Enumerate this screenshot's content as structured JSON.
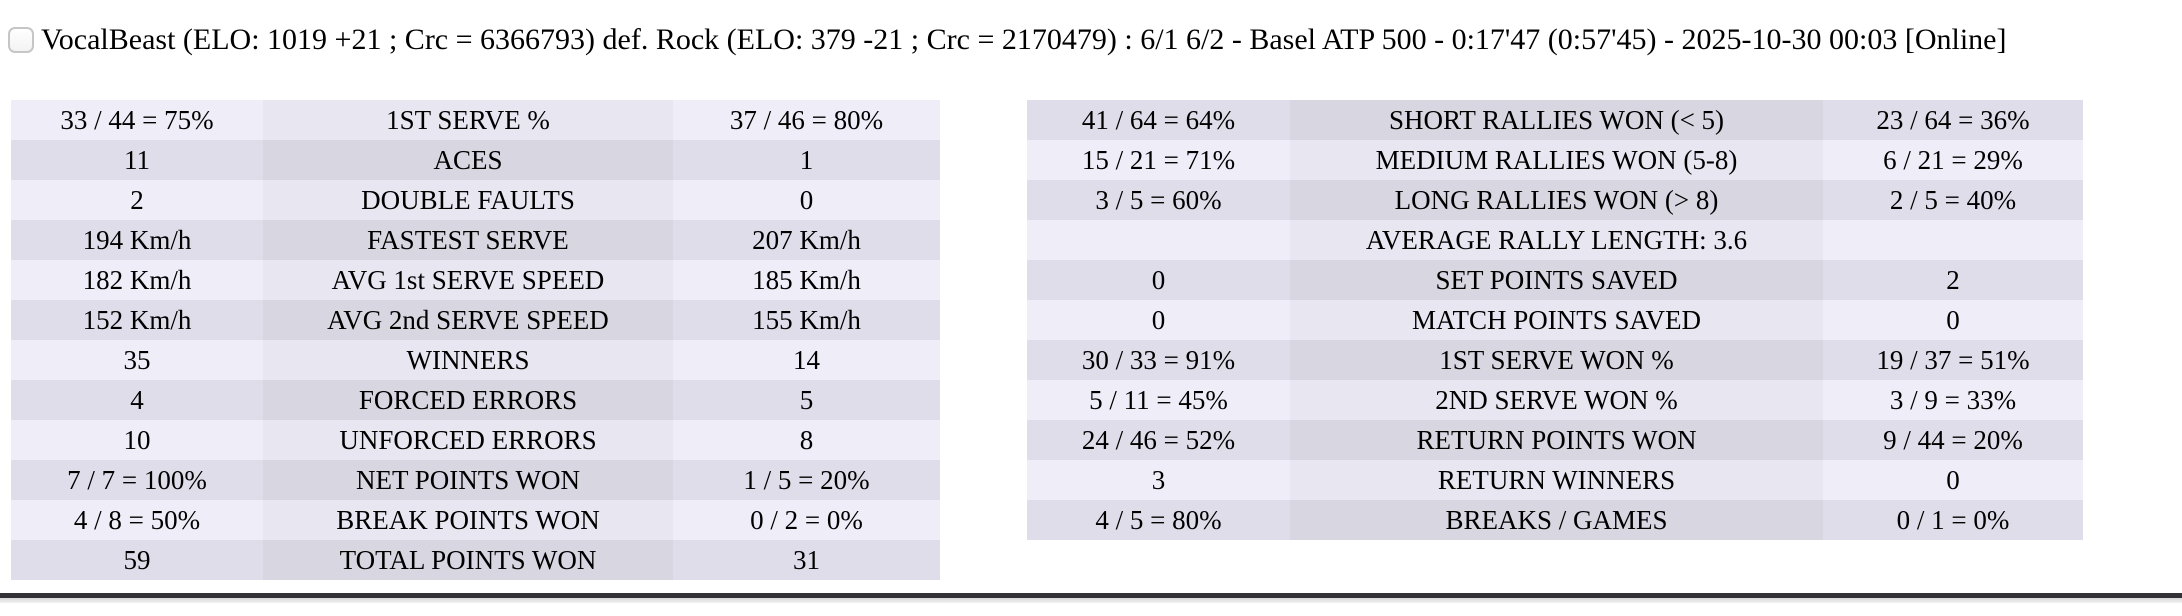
{
  "header": {
    "title": "VocalBeast (ELO: 1019 +21 ; Crc = 6366793) def. Rock (ELO: 379 -21 ; Crc = 2170479) : 6/1 6/2 - Basel ATP 500 - 0:17'47 (0:57'45) - 2025-10-30 00:03 [Online]",
    "checkbox_checked": false
  },
  "colors": {
    "row_light": "#eeedf8",
    "row_light_mid": "#e7e6f1",
    "row_dark": "#dedde9",
    "row_dark_mid": "#d7d6e1",
    "divider": "#323236",
    "text": "#000000"
  },
  "left_table": {
    "first_row_shade": "light",
    "rows": [
      {
        "p1": "33 / 44 = 75%",
        "label": "1ST SERVE %",
        "p2": "37 / 46 = 80%"
      },
      {
        "p1": "11",
        "label": "ACES",
        "p2": "1"
      },
      {
        "p1": "2",
        "label": "DOUBLE FAULTS",
        "p2": "0"
      },
      {
        "p1": "194 Km/h",
        "label": "FASTEST SERVE",
        "p2": "207 Km/h"
      },
      {
        "p1": "182 Km/h",
        "label": "AVG 1st SERVE SPEED",
        "p2": "185 Km/h"
      },
      {
        "p1": "152 Km/h",
        "label": "AVG 2nd SERVE SPEED",
        "p2": "155 Km/h"
      },
      {
        "p1": "35",
        "label": "WINNERS",
        "p2": "14"
      },
      {
        "p1": "4",
        "label": "FORCED ERRORS",
        "p2": "5"
      },
      {
        "p1": "10",
        "label": "UNFORCED ERRORS",
        "p2": "8"
      },
      {
        "p1": "7 / 7 = 100%",
        "label": "NET POINTS WON",
        "p2": "1 / 5 = 20%"
      },
      {
        "p1": "4 / 8 = 50%",
        "label": "BREAK POINTS WON",
        "p2": "0 / 2 = 0%"
      },
      {
        "p1": "59",
        "label": "TOTAL POINTS WON",
        "p2": "31"
      }
    ]
  },
  "right_table": {
    "first_row_shade": "dark",
    "rows": [
      {
        "p1": "41 / 64 = 64%",
        "label": "SHORT RALLIES WON (< 5)",
        "p2": "23 / 64 = 36%"
      },
      {
        "p1": "15 / 21 = 71%",
        "label": "MEDIUM RALLIES WON (5-8)",
        "p2": "6 / 21 = 29%"
      },
      {
        "p1": "3 / 5 = 60%",
        "label": "LONG RALLIES WON (> 8)",
        "p2": "2 / 5 = 40%"
      },
      {
        "p1": "",
        "label": "AVERAGE RALLY LENGTH: 3.6",
        "p2": ""
      },
      {
        "p1": "0",
        "label": "SET POINTS SAVED",
        "p2": "2"
      },
      {
        "p1": "0",
        "label": "MATCH POINTS SAVED",
        "p2": "0"
      },
      {
        "p1": "30 / 33 = 91%",
        "label": "1ST SERVE WON %",
        "p2": "19 / 37 = 51%"
      },
      {
        "p1": "5 / 11 = 45%",
        "label": "2ND SERVE WON %",
        "p2": "3 / 9 = 33%"
      },
      {
        "p1": "24 / 46 = 52%",
        "label": "RETURN POINTS WON",
        "p2": "9 / 44 = 20%"
      },
      {
        "p1": "3",
        "label": "RETURN WINNERS",
        "p2": "0"
      },
      {
        "p1": "4 / 5 = 80%",
        "label": "BREAKS / GAMES",
        "p2": "0 / 1 = 0%"
      }
    ]
  }
}
